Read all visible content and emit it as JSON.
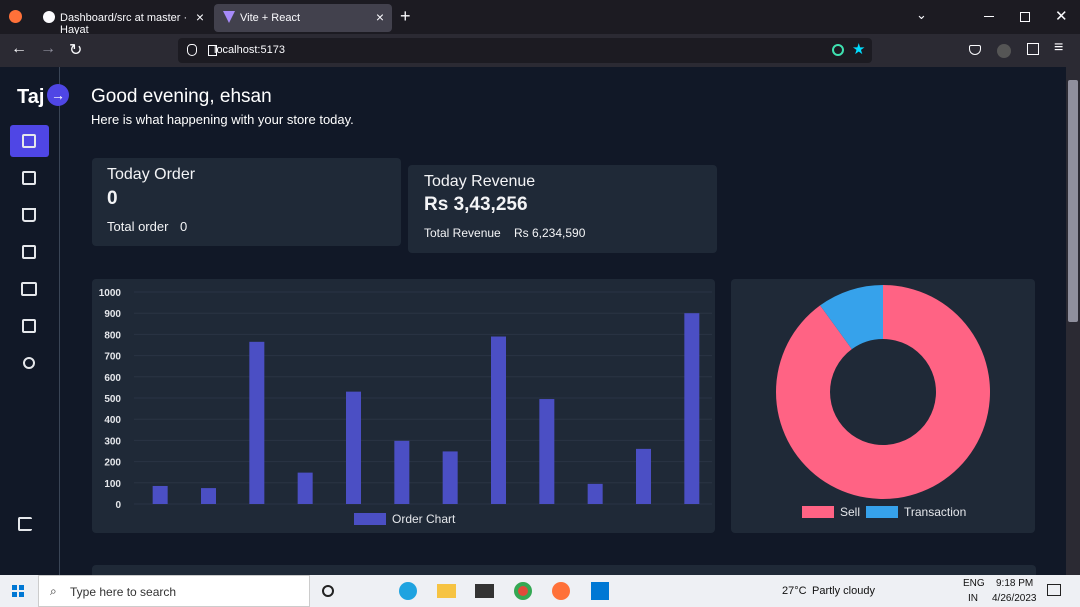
{
  "browser": {
    "tabs": [
      "Dashboard/src at master · Hayat",
      "Vite + React"
    ],
    "url": "localhost:5173"
  },
  "sidebar": {
    "brand": "Taj"
  },
  "header": {
    "title": "Good evening, ehsan",
    "subtitle": "Here is what happening with your store today."
  },
  "cards": [
    {
      "title": "Today Order",
      "value": 0,
      "total_label": "Total order",
      "total_value": 0
    },
    {
      "title": "Today Revenue",
      "value": "Rs 3,43,256",
      "total_label": "Total Revenue",
      "total_value": "Rs 6,234,590"
    }
  ],
  "chart_data": [
    {
      "type": "bar",
      "categories": [
        null,
        null,
        null,
        null,
        null,
        null,
        null,
        null,
        null,
        null,
        null,
        null
      ],
      "series": [
        {
          "name": "Order Chart",
          "color": "#4b4fc4",
          "values": [
            85,
            75,
            765,
            148,
            530,
            298,
            248,
            790,
            495,
            95,
            260,
            900
          ]
        }
      ],
      "ylim": [
        0,
        1000
      ],
      "yticks": [
        0,
        100,
        200,
        300,
        400,
        500,
        600,
        700,
        800,
        900,
        1000
      ],
      "grid": true,
      "legend": "bottom"
    },
    {
      "type": "pie",
      "donut": true,
      "categories": [
        "Sell",
        "Transaction"
      ],
      "values": [
        90,
        10
      ],
      "colors": [
        "#ff6384",
        "#36a2eb"
      ],
      "legend": "bottom"
    }
  ],
  "taskbar": {
    "search": "Type here to search",
    "temperature": "27°C",
    "weather": "Partly cloudy",
    "language": "ENG",
    "region": "IN",
    "time": "9:18 PM",
    "date": "4/26/2023"
  }
}
